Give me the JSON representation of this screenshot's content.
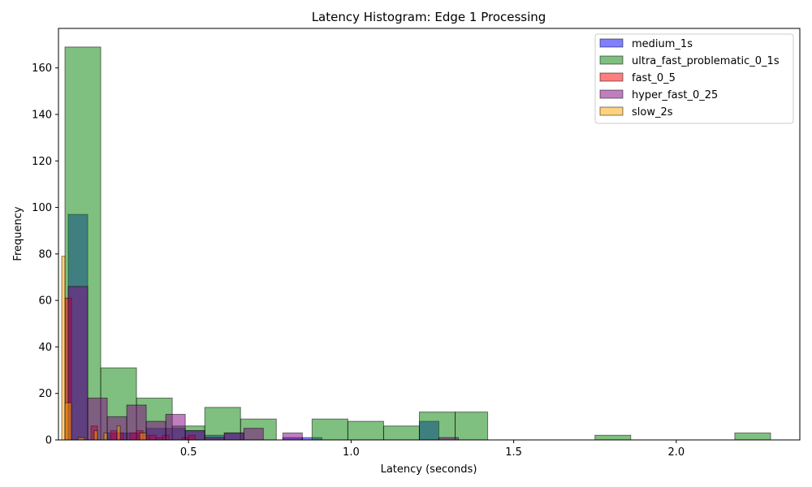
{
  "chart_data": {
    "type": "bar",
    "title": "Latency Histogram: Edge 1 Processing",
    "xlabel": "Latency (seconds)",
    "ylabel": "Frequency",
    "xlim": [
      0.1,
      2.38
    ],
    "ylim": [
      0,
      177
    ],
    "xticks": [
      0.5,
      1.0,
      1.5,
      2.0
    ],
    "xtick_labels": [
      "0.5",
      "1.0",
      "1.5",
      "2.0"
    ],
    "yticks": [
      0,
      20,
      40,
      60,
      80,
      100,
      120,
      140,
      160
    ],
    "ytick_labels": [
      "0",
      "20",
      "40",
      "60",
      "80",
      "100",
      "120",
      "140",
      "160"
    ],
    "grid": false,
    "legend_position": "top-right",
    "series": [
      {
        "name": "medium_1s",
        "color": "#0000ff",
        "bins": [
          [
            0.13,
            0.19,
            97
          ],
          [
            0.19,
            0.25,
            0
          ],
          [
            0.25,
            0.31,
            3
          ],
          [
            0.31,
            0.37,
            3
          ],
          [
            0.37,
            0.43,
            5
          ],
          [
            0.43,
            0.49,
            5
          ],
          [
            0.49,
            0.55,
            4
          ],
          [
            0.55,
            0.61,
            2
          ],
          [
            0.61,
            0.67,
            3
          ],
          [
            0.67,
            0.73,
            0
          ],
          [
            0.73,
            0.79,
            0
          ],
          [
            0.79,
            0.85,
            1
          ],
          [
            0.85,
            0.91,
            1
          ],
          [
            0.91,
            0.97,
            0
          ],
          [
            0.97,
            1.03,
            0
          ],
          [
            1.03,
            1.09,
            0
          ],
          [
            1.09,
            1.15,
            0
          ],
          [
            1.15,
            1.21,
            0
          ],
          [
            1.21,
            1.27,
            8
          ],
          [
            1.27,
            1.33,
            0
          ]
        ]
      },
      {
        "name": "ultra_fast_problematic_0_1s",
        "color": "#008000",
        "bins": [
          [
            0.12,
            0.23,
            169
          ],
          [
            0.23,
            0.34,
            31
          ],
          [
            0.34,
            0.45,
            18
          ],
          [
            0.45,
            0.55,
            6
          ],
          [
            0.55,
            0.66,
            14
          ],
          [
            0.66,
            0.77,
            9
          ],
          [
            0.77,
            0.88,
            0
          ],
          [
            0.88,
            0.99,
            9
          ],
          [
            0.99,
            1.1,
            8
          ],
          [
            1.1,
            1.21,
            6
          ],
          [
            1.21,
            1.32,
            12
          ],
          [
            1.32,
            1.42,
            12
          ],
          [
            1.42,
            1.53,
            0
          ],
          [
            1.53,
            1.64,
            0
          ],
          [
            1.64,
            1.75,
            0
          ],
          [
            1.75,
            1.86,
            2
          ],
          [
            1.86,
            1.97,
            0
          ],
          [
            1.97,
            2.07,
            0
          ],
          [
            2.07,
            2.18,
            0
          ],
          [
            2.18,
            2.29,
            3
          ]
        ]
      },
      {
        "name": "fast_0_5",
        "color": "#ff0000",
        "bins": [
          [
            0.12,
            0.14,
            61
          ],
          [
            0.14,
            0.16,
            0
          ],
          [
            0.16,
            0.18,
            0
          ],
          [
            0.18,
            0.2,
            0
          ],
          [
            0.2,
            0.22,
            6
          ],
          [
            0.22,
            0.24,
            0
          ],
          [
            0.24,
            0.26,
            0
          ],
          [
            0.26,
            0.28,
            4
          ],
          [
            0.28,
            0.3,
            3
          ],
          [
            0.3,
            0.32,
            0
          ],
          [
            0.32,
            0.34,
            3
          ],
          [
            0.34,
            0.36,
            4
          ],
          [
            0.36,
            0.38,
            2
          ],
          [
            0.38,
            0.4,
            2
          ],
          [
            0.4,
            0.42,
            1
          ],
          [
            0.42,
            0.44,
            2
          ],
          [
            0.44,
            0.46,
            0
          ],
          [
            0.46,
            0.48,
            0
          ],
          [
            0.48,
            0.5,
            1
          ],
          [
            0.5,
            0.52,
            2
          ]
        ]
      },
      {
        "name": "hyper_fast_0_25",
        "color": "#800080",
        "bins": [
          [
            0.13,
            0.19,
            66
          ],
          [
            0.19,
            0.25,
            18
          ],
          [
            0.25,
            0.31,
            10
          ],
          [
            0.31,
            0.37,
            15
          ],
          [
            0.37,
            0.43,
            8
          ],
          [
            0.43,
            0.49,
            11
          ],
          [
            0.49,
            0.55,
            4
          ],
          [
            0.55,
            0.61,
            1
          ],
          [
            0.61,
            0.67,
            3
          ],
          [
            0.67,
            0.73,
            5
          ],
          [
            0.73,
            0.79,
            0
          ],
          [
            0.79,
            0.85,
            3
          ],
          [
            0.85,
            0.91,
            0
          ],
          [
            0.91,
            0.97,
            0
          ],
          [
            0.97,
            1.03,
            0
          ],
          [
            1.03,
            1.09,
            0
          ],
          [
            1.09,
            1.15,
            0
          ],
          [
            1.15,
            1.21,
            0
          ],
          [
            1.21,
            1.27,
            0
          ],
          [
            1.27,
            1.33,
            1
          ]
        ]
      },
      {
        "name": "slow_2s",
        "color": "#ffa500",
        "bins": [
          [
            0.11,
            0.12,
            79
          ],
          [
            0.12,
            0.14,
            16
          ],
          [
            0.14,
            0.15,
            0
          ],
          [
            0.15,
            0.16,
            0
          ],
          [
            0.16,
            0.18,
            1
          ],
          [
            0.18,
            0.19,
            0
          ],
          [
            0.19,
            0.21,
            0
          ],
          [
            0.21,
            0.22,
            4
          ],
          [
            0.22,
            0.24,
            0
          ],
          [
            0.24,
            0.25,
            3
          ],
          [
            0.25,
            0.27,
            0
          ],
          [
            0.27,
            0.28,
            0
          ],
          [
            0.28,
            0.29,
            6
          ],
          [
            0.29,
            0.31,
            0
          ],
          [
            0.31,
            0.32,
            0
          ],
          [
            0.32,
            0.34,
            0
          ],
          [
            0.34,
            0.35,
            0
          ],
          [
            0.35,
            0.37,
            3
          ],
          [
            0.37,
            0.38,
            0
          ],
          [
            0.38,
            0.4,
            0
          ]
        ]
      }
    ]
  }
}
